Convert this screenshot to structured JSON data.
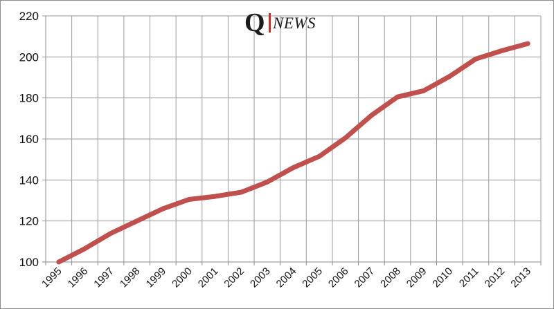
{
  "logo": {
    "letter": "Q",
    "word": "NEWS",
    "bar_color": "#c0302c"
  },
  "chart_data": {
    "type": "line",
    "title": "",
    "xlabel": "",
    "ylabel": "",
    "x": [
      "1995",
      "1996",
      "1997",
      "1998",
      "1999",
      "2000",
      "2001",
      "2002",
      "2003",
      "2004",
      "2005",
      "2006",
      "2007",
      "2008",
      "2009",
      "2010",
      "2011",
      "2012",
      "2013"
    ],
    "series": [
      {
        "values": [
          100,
          106.5,
          114,
          120,
          126,
          130.5,
          132,
          134,
          139,
          146,
          151.5,
          160.5,
          171.5,
          180.5,
          183.5,
          190.5,
          199,
          203,
          206.5
        ],
        "color": "#c0504d"
      }
    ],
    "ylim": [
      100,
      220
    ],
    "yticks": [
      100,
      120,
      140,
      160,
      180,
      200,
      220
    ],
    "grid": true,
    "legend": "none"
  }
}
